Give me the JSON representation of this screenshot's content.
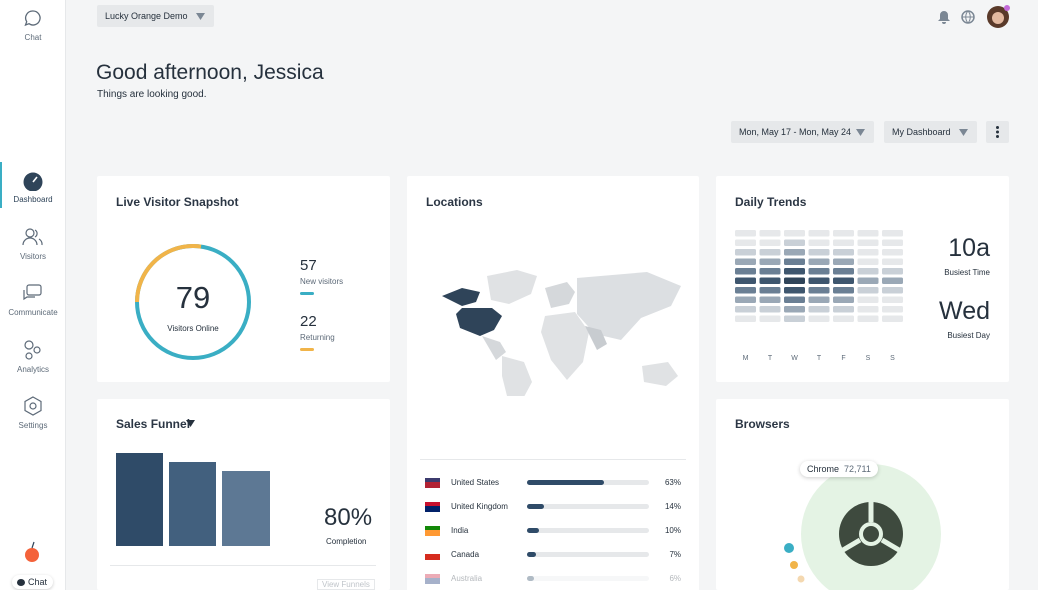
{
  "sidebar": {
    "items": [
      {
        "label": "Chat"
      },
      {
        "label": "Dashboard"
      },
      {
        "label": "Visitors"
      },
      {
        "label": "Communicate"
      },
      {
        "label": "Analytics"
      },
      {
        "label": "Settings"
      }
    ],
    "chat_button": "Chat"
  },
  "topbar": {
    "site_selector": "Lucky Orange Demo"
  },
  "header": {
    "greeting": "Good afternoon, Jessica",
    "subtitle": "Things are looking good."
  },
  "controls": {
    "date_range": "Mon, May 17 - Mon, May 24",
    "dashboard": "My Dashboard"
  },
  "live_visitors": {
    "title": "Live Visitor Snapshot",
    "online": 79,
    "online_label": "Visitors Online",
    "new": 57,
    "new_label": "New visitors",
    "returning": 22,
    "returning_label": "Returning"
  },
  "locations": {
    "title": "Locations",
    "rows": [
      {
        "country": "United States",
        "percent": 63,
        "percent_label": "63%"
      },
      {
        "country": "United Kingdom",
        "percent": 14,
        "percent_label": "14%"
      },
      {
        "country": "India",
        "percent": 10,
        "percent_label": "10%"
      },
      {
        "country": "Canada",
        "percent": 7,
        "percent_label": "7%"
      },
      {
        "country": "Australia",
        "percent": 6,
        "percent_label": "6%"
      }
    ]
  },
  "daily_trends": {
    "title": "Daily Trends",
    "days": [
      "M",
      "T",
      "W",
      "T",
      "F",
      "S",
      "S"
    ],
    "busiest_time": "10a",
    "busiest_time_label": "Busiest Time",
    "busiest_day": "Wed",
    "busiest_day_label": "Busiest Day"
  },
  "sales_funnel": {
    "title": "Sales Funnel",
    "completion": "80%",
    "completion_label": "Completion",
    "link": "View Funnels"
  },
  "browsers": {
    "title": "Browsers",
    "top": {
      "name": "Chrome",
      "value": 72711,
      "value_label": "72,711"
    }
  }
}
